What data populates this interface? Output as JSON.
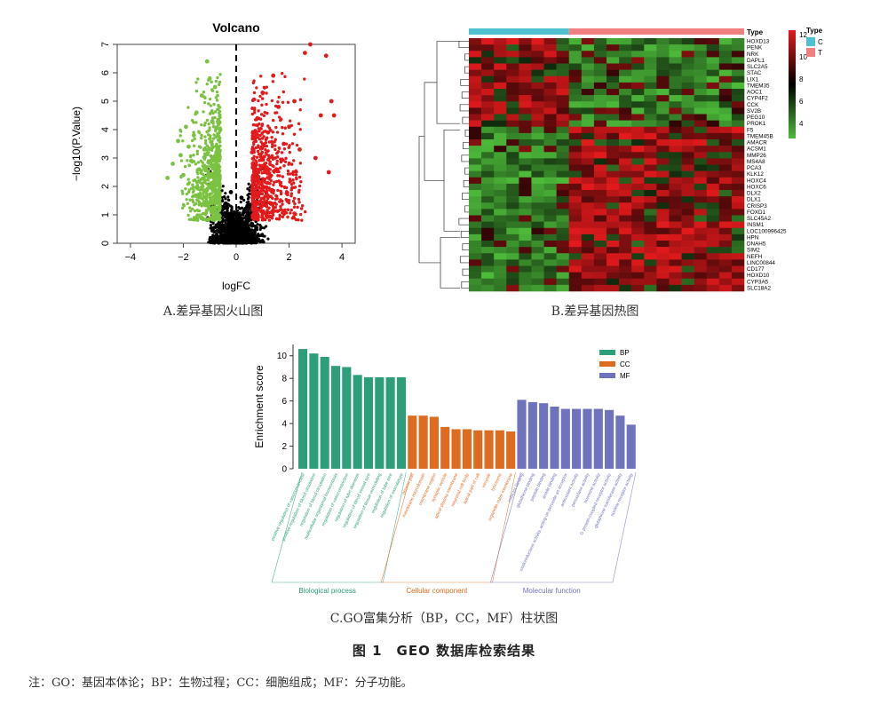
{
  "volcano": {
    "title": "Volcano",
    "xlabel": "logFC",
    "ylabel": "−log10(P.Value)",
    "caption": "A.差异基因火山图",
    "chart_data": {
      "type": "scatter",
      "title": "Volcano",
      "xlabel": "logFC",
      "ylabel": "−log10(P.Value)",
      "xlim": [
        -4.5,
        4.5
      ],
      "ylim": [
        0,
        7
      ],
      "xticks": [
        -4,
        -2,
        0,
        2,
        4
      ],
      "yticks": [
        0,
        1,
        2,
        3,
        4,
        5,
        6,
        7
      ],
      "threshold_logfc": 0,
      "colors": {
        "down": "#7cc242",
        "up": "#e31a1c",
        "ns": "#000000",
        "threshold": "#000000"
      },
      "series": [
        {
          "group": "down",
          "points": [
            [
              -2.6,
              2.3
            ],
            [
              -2.4,
              2.8
            ],
            [
              -2.2,
              3.6
            ],
            [
              -2.1,
              3.1
            ],
            [
              -2.0,
              2.4
            ],
            [
              -1.9,
              4.1
            ],
            [
              -1.8,
              3.4
            ],
            [
              -1.7,
              2.9
            ],
            [
              -1.6,
              3.8
            ],
            [
              -1.5,
              4.6
            ],
            [
              -1.4,
              2.6
            ],
            [
              -1.3,
              5.2
            ],
            [
              -1.2,
              3.3
            ],
            [
              -1.1,
              6.4
            ],
            [
              -1.0,
              5.8
            ],
            [
              -0.9,
              4.3
            ],
            [
              -0.8,
              5.5
            ],
            [
              -0.7,
              3.0
            ],
            [
              -0.6,
              4.0
            ]
          ]
        },
        {
          "group": "up",
          "points": [
            [
              0.6,
              3.2
            ],
            [
              0.8,
              4.4
            ],
            [
              1.0,
              5.3
            ],
            [
              1.2,
              3.9
            ],
            [
              1.4,
              5.9
            ],
            [
              1.6,
              4.8
            ],
            [
              1.8,
              3.5
            ],
            [
              2.0,
              4.1
            ],
            [
              2.2,
              5.0
            ],
            [
              2.4,
              3.3
            ],
            [
              2.6,
              6.7
            ],
            [
              2.8,
              7.0
            ],
            [
              3.0,
              3.0
            ],
            [
              3.2,
              4.5
            ],
            [
              3.4,
              6.6
            ],
            [
              3.5,
              2.5
            ],
            [
              3.6,
              5.0
            ],
            [
              3.7,
              4.5
            ]
          ]
        },
        {
          "group": "ns",
          "points": [
            [
              -0.5,
              0.6
            ],
            [
              -0.4,
              1.4
            ],
            [
              -0.3,
              0.9
            ],
            [
              -0.2,
              1.8
            ],
            [
              -0.1,
              0.3
            ],
            [
              0.1,
              0.5
            ],
            [
              0.2,
              1.6
            ],
            [
              0.3,
              1.1
            ],
            [
              0.4,
              0.7
            ],
            [
              0.5,
              1.3
            ]
          ]
        }
      ]
    }
  },
  "heatmap": {
    "caption": "B.差异基因热图",
    "type_header": "Type",
    "legend_title": "Type",
    "groups": [
      {
        "label": "C",
        "color": "#4fc0d0"
      },
      {
        "label": "T",
        "color": "#f08080"
      }
    ],
    "color_scale": {
      "labels": [
        "12",
        "10",
        "8",
        "6",
        "4"
      ],
      "high": "#e31a1c",
      "mid": "#000000",
      "low": "#4dbb3a"
    },
    "chart_data": {
      "type": "heatmap",
      "n_control": 8,
      "n_tumor": 14,
      "genes": [
        "HOXD13",
        "PENK",
        "NRK",
        "DAPL1",
        "SLC2A5",
        "STAC",
        "LIX1",
        "TMEM35",
        "AOC1",
        "CYP4F2",
        "CCK",
        "SV2B",
        "PEG10",
        "PROK1",
        "F5",
        "TMEM45B",
        "AMACR",
        "ACSM1",
        "MMP26",
        "MS4A8",
        "PCA3",
        "KLK12",
        "HOXC4",
        "HOXC6",
        "DLX2",
        "DLX1",
        "CRISP3",
        "FOXD1",
        "SLC45A2",
        "INSM1",
        "LOC100996425",
        "HPN",
        "DNAH5",
        "SIM2",
        "NEFH",
        "LINC00844",
        "CD177",
        "HOXD10",
        "CYP3A5",
        "SLC18A2"
      ]
    }
  },
  "go": {
    "caption": "C.GO富集分析（BP，CC，MF）柱状图",
    "ylabel": "Enrichment score",
    "chart_data": {
      "type": "bar",
      "ylabel": "Enrichment score",
      "ylim": [
        0,
        11
      ],
      "yticks": [
        0,
        2,
        4,
        6,
        8,
        10
      ],
      "legend": [
        {
          "name": "BP",
          "color": "#2e9e7a"
        },
        {
          "name": "CC",
          "color": "#dd6b20"
        },
        {
          "name": "MF",
          "color": "#6f72bd"
        }
      ],
      "groups": [
        {
          "name": "Biological process",
          "series": "BP",
          "color": "#2e9e7a",
          "categories": [
            "positive regulation of vasoconstriction",
            "positive regulation of blood circulation",
            "regulation of blood circulation",
            "multicellular organismal homeostasis",
            "regulation of vasoconstriction",
            "regulation of tube diameter",
            "regulation of blood vessel size",
            "regulation of tissue remodeling",
            "regulation of tube size",
            "regulation of vasculature"
          ],
          "values": [
            10.6,
            10.2,
            9.9,
            9.1,
            9.0,
            8.3,
            8.1,
            8.1,
            8.1,
            8.1
          ]
        },
        {
          "name": "Cellular component",
          "series": "CC",
          "color": "#dd6b20",
          "categories": [
            "neuron part",
            "membrane microdomain",
            "membrane region",
            "synaptic vesicle",
            "apical plasma membrane",
            "neuronal cell body",
            "apical part of cell",
            "vacuole",
            "lysosome",
            "organelle outer membrane"
          ],
          "values": [
            4.7,
            4.7,
            4.6,
            3.7,
            3.5,
            3.5,
            3.4,
            3.4,
            3.4,
            3.3
          ]
        },
        {
          "name": "Molecular function",
          "series": "MF",
          "color": "#6f72bd",
          "categories": [
            "cofactor binding",
            "glutathione binding",
            "peptide binding",
            "amide binding",
            "oxidoreductase activity, acting on peroxide as acceptor",
            "antioxidant activity",
            "peroxidase activity",
            "hormone activity",
            "G protein-coupled receptor activity",
            "glutathione transferase activity",
            "nuclear receptor activity"
          ],
          "values": [
            6.1,
            5.9,
            5.8,
            5.5,
            5.3,
            5.3,
            5.3,
            5.3,
            5.2,
            4.7,
            3.9
          ]
        }
      ]
    }
  },
  "figure_title": "图 1　GEO 数据库检索结果",
  "note": "注：GO：基因本体论；BP：生物过程；CC：细胞组成；MF：分子功能。"
}
